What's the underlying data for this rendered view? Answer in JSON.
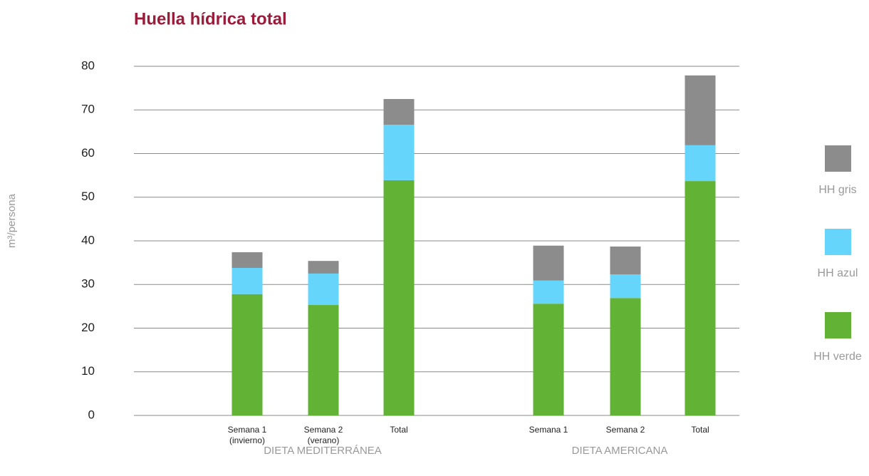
{
  "chart_data": {
    "type": "bar",
    "stacked": true,
    "title": "Huella hídrica total",
    "ylabel": "m³/persona",
    "groups": [
      {
        "name": "DIETA MEDITERRÁNEA",
        "categories": [
          "Semana 1\n(invierno)",
          "Semana 2\n(verano)",
          "Total"
        ]
      },
      {
        "name": "DIETA AMERICANA",
        "categories": [
          "Semana 1",
          "Semana 2",
          "Total"
        ]
      }
    ],
    "series": [
      {
        "name": "HH verde",
        "color": "#62b236",
        "values": [
          27.8,
          25.3,
          53.9,
          25.6,
          26.9,
          53.7
        ]
      },
      {
        "name": "HH azul",
        "color": "#66d5fb",
        "values": [
          6.0,
          7.2,
          12.7,
          5.3,
          5.4,
          8.2
        ]
      },
      {
        "name": "HH gris",
        "color": "#8c8c8d",
        "values": [
          3.6,
          2.9,
          5.9,
          8.0,
          6.4,
          16.0
        ]
      }
    ],
    "ylim": [
      0,
      80
    ],
    "yticks": [
      0,
      10,
      20,
      30,
      40,
      50,
      60,
      70,
      80
    ],
    "grid": true,
    "legend": "right"
  }
}
